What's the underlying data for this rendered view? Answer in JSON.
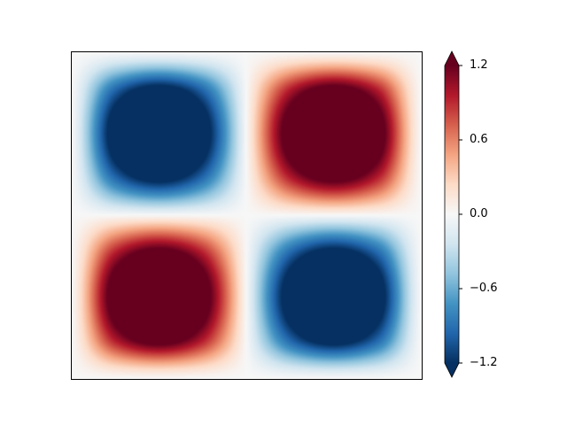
{
  "chart_data": {
    "type": "heatmap",
    "title": "",
    "xlabel": "",
    "ylabel": "",
    "x_ticks": [],
    "y_ticks": [],
    "colormap": "RdBu_r",
    "colormap_stops": [
      "#053061",
      "#2166ac",
      "#4393c3",
      "#92c5de",
      "#d1e5f0",
      "#f7f7f7",
      "#fddbc7",
      "#f4a582",
      "#d6604d",
      "#b2182b",
      "#67001f"
    ],
    "clim": [
      -1.2,
      1.2
    ],
    "colorbar": {
      "extend": "both",
      "ticks": [
        1.2,
        0.6,
        0.0,
        -0.6,
        -1.2
      ],
      "tick_labels": [
        "1.2",
        "0.6",
        "0.0",
        "−0.6",
        "−1.2"
      ]
    },
    "grid_rows_top_to_bottom": [
      [
        0,
        0,
        0,
        0,
        0,
        0,
        0,
        0,
        0
      ],
      [
        0,
        -1,
        -1.414,
        -1,
        0,
        1,
        1.414,
        1,
        0
      ],
      [
        0,
        -1.414,
        -2,
        -1.414,
        0,
        1.414,
        2,
        1.414,
        0
      ],
      [
        0,
        -1,
        -1.414,
        -1,
        0,
        1,
        1.414,
        1,
        0
      ],
      [
        0,
        0,
        0,
        0,
        0,
        0,
        0,
        0,
        0
      ],
      [
        0,
        1,
        1.414,
        1,
        0,
        -1,
        -1.414,
        -1,
        0
      ],
      [
        0,
        1.414,
        2,
        1.414,
        0,
        -1.414,
        -2,
        -1.414,
        0
      ],
      [
        0,
        1,
        1.414,
        1,
        0,
        -1,
        -1.414,
        -1,
        0
      ],
      [
        0,
        0,
        0,
        0,
        0,
        0,
        0,
        0,
        0
      ]
    ]
  }
}
